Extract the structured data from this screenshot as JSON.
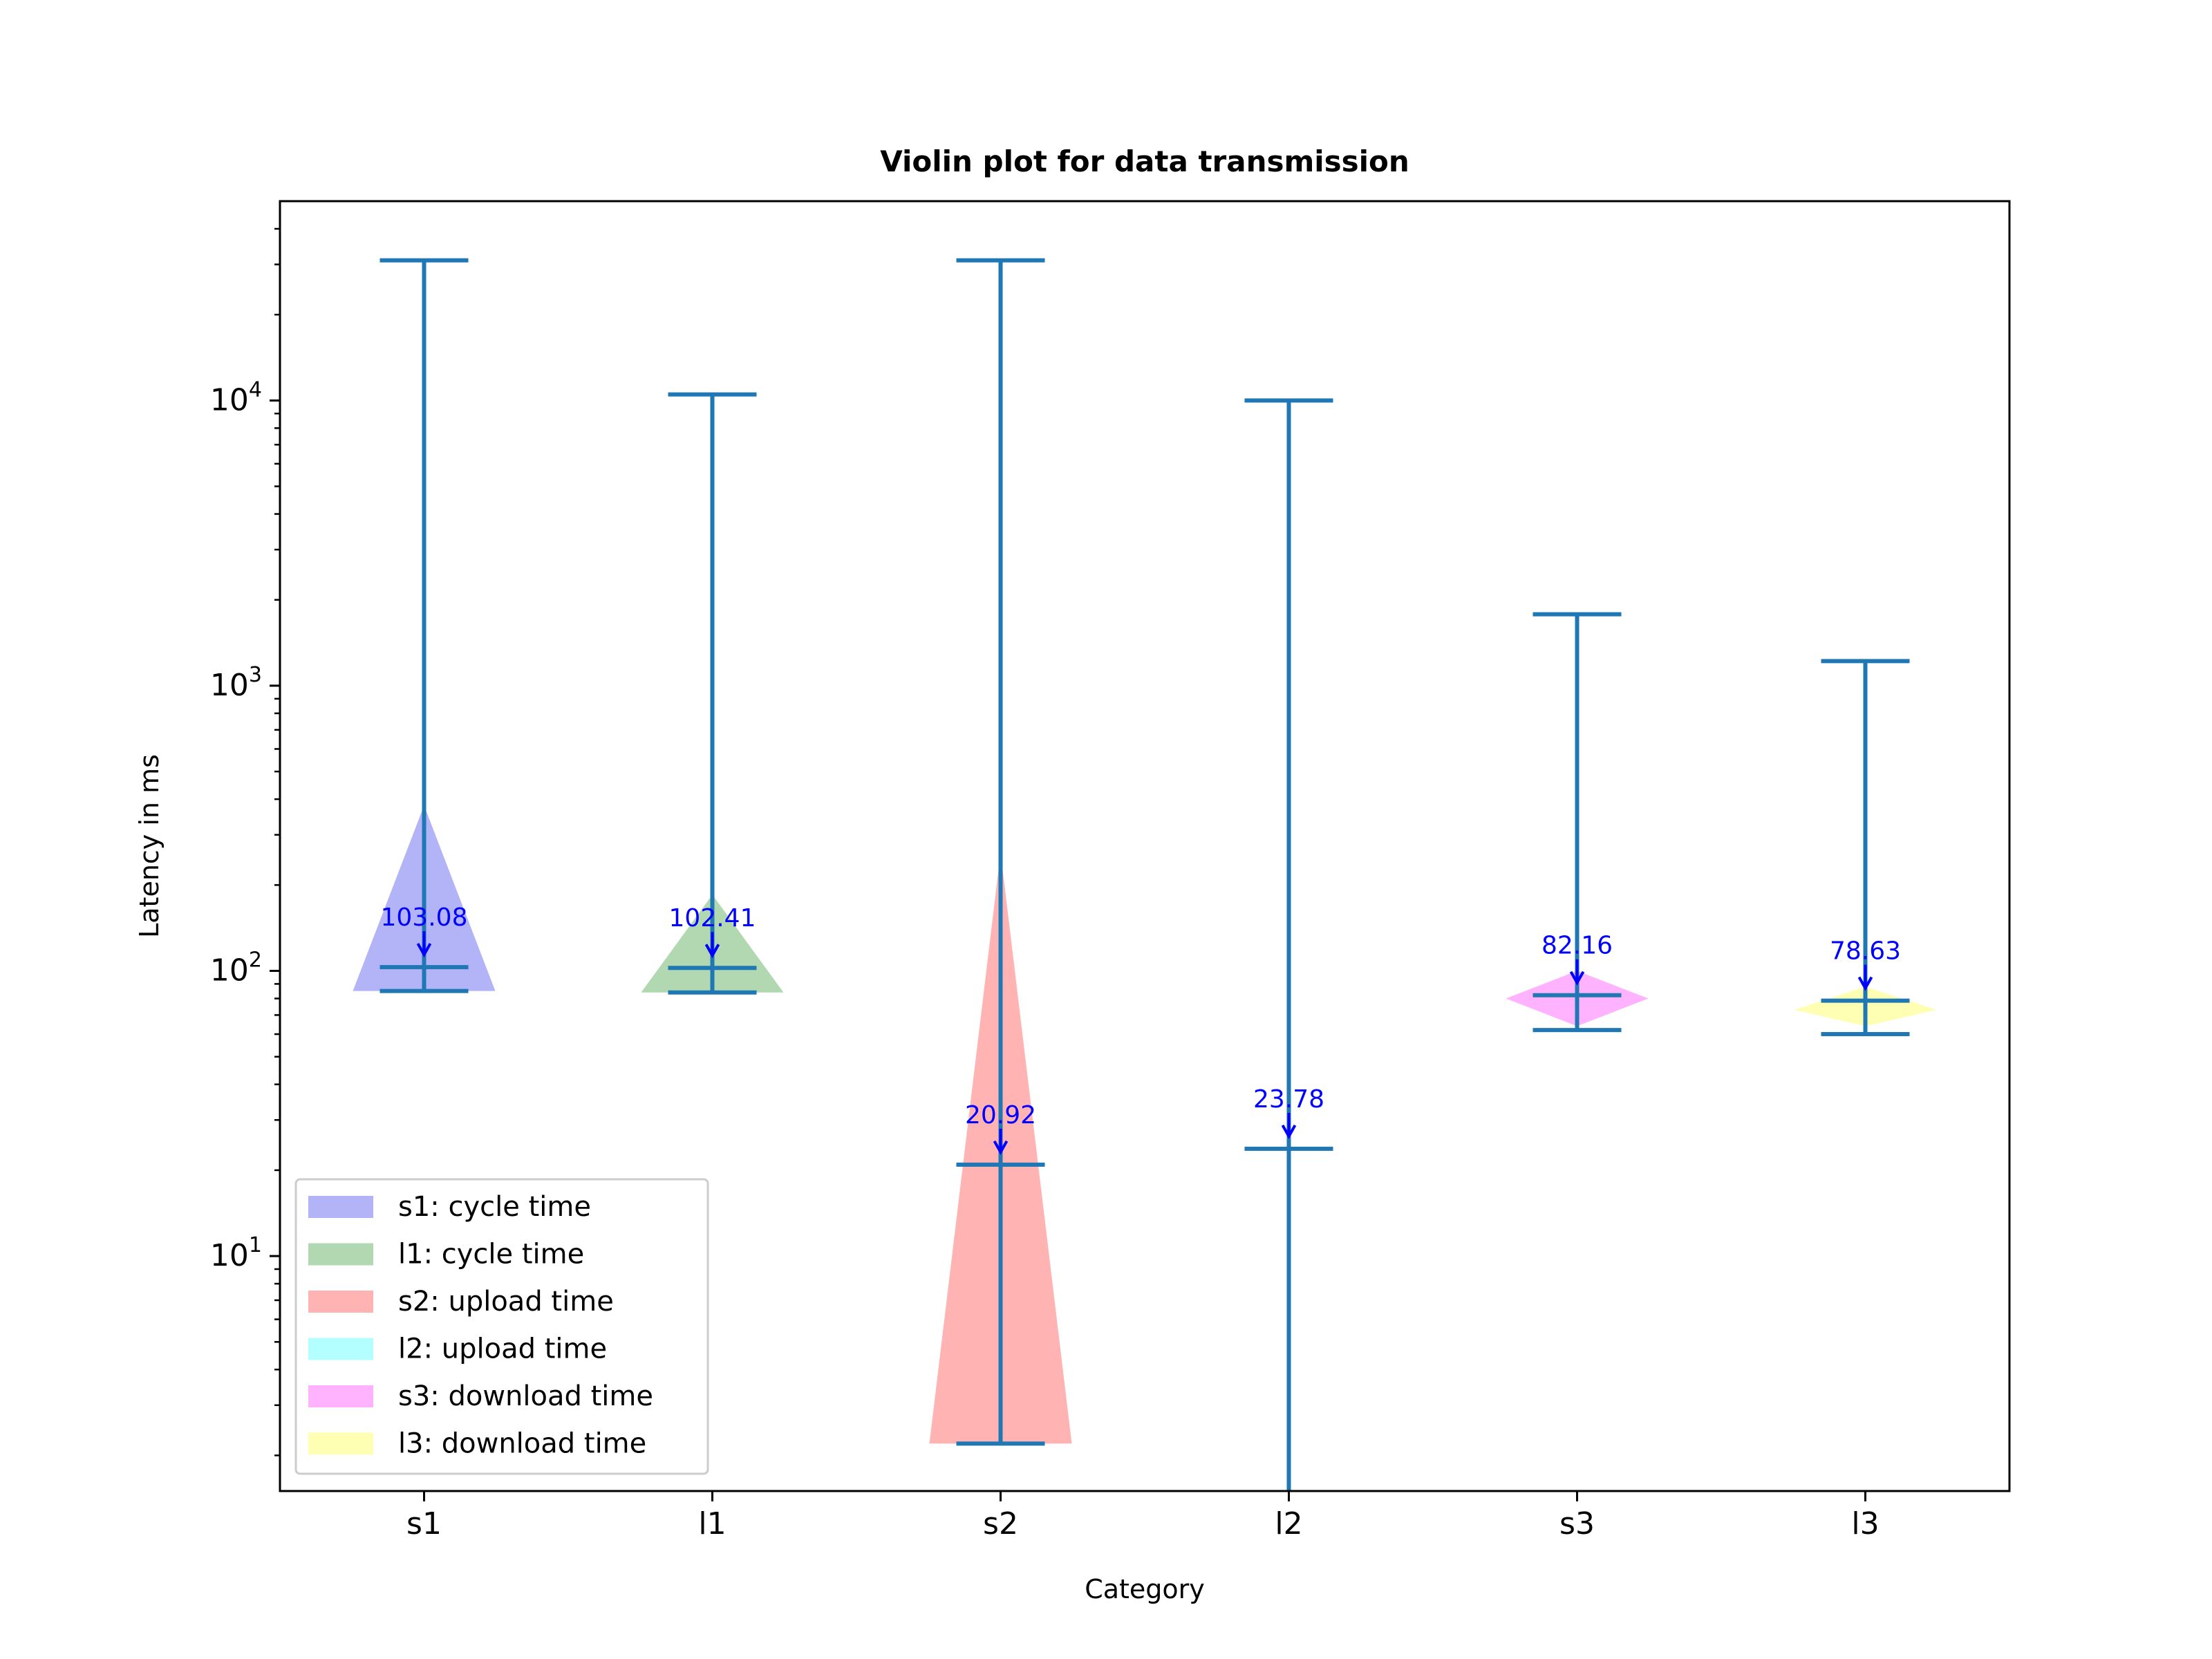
{
  "chart_data": {
    "type": "violin",
    "title": "Violin plot for data transmission",
    "xlabel": "Category",
    "ylabel": "Latency in ms",
    "yscale": "log",
    "ylim": [
      1.5,
      50000
    ],
    "yticks": [
      {
        "value": 10,
        "base": "10",
        "exp": "1"
      },
      {
        "value": 100,
        "base": "10",
        "exp": "2"
      },
      {
        "value": 1000,
        "base": "10",
        "exp": "3"
      },
      {
        "value": 10000,
        "base": "10",
        "exp": "4"
      }
    ],
    "categories": [
      "s1",
      "l1",
      "s2",
      "l2",
      "s3",
      "l3"
    ],
    "series": [
      {
        "category": "s1",
        "legend": "s1: cycle time",
        "color": "#b3b3f7",
        "min": 85,
        "max": 31000,
        "mean": 103.08,
        "mean_label": "103.08",
        "violin_top": 380,
        "violin_bottom": 85,
        "violin_peak": 85,
        "shape": "triangle-up"
      },
      {
        "category": "l1",
        "legend": "l1: cycle time",
        "color": "#b2d8b2",
        "min": 84,
        "max": 10500,
        "mean": 102.41,
        "mean_label": "102.41",
        "violin_top": 185,
        "violin_bottom": 84,
        "violin_peak": 84,
        "shape": "triangle-up"
      },
      {
        "category": "s2",
        "legend": "s2: upload time",
        "color": "#ffb3b3",
        "min": 2.2,
        "max": 31000,
        "mean": 20.92,
        "mean_label": "20.92",
        "violin_top": 260,
        "violin_bottom": 2.2,
        "violin_peak": 2.2,
        "shape": "triangle-up"
      },
      {
        "category": "l2",
        "legend": "l2: upload time",
        "color": "#b3ffff",
        "min": 1.5,
        "max": 10000,
        "mean": 23.78,
        "mean_label": "23.78",
        "violin_top": null,
        "violin_bottom": null,
        "violin_peak": null,
        "shape": "none"
      },
      {
        "category": "s3",
        "legend": "s3: download time",
        "color": "#ffb3ff",
        "min": 62,
        "max": 1780,
        "mean": 82.16,
        "mean_label": "82.16",
        "violin_top": 100,
        "violin_bottom": 64,
        "violin_peak": 80,
        "shape": "diamond"
      },
      {
        "category": "l3",
        "legend": "l3: download time",
        "color": "#ffffb3",
        "min": 60,
        "max": 1220,
        "mean": 78.63,
        "mean_label": "78.63",
        "violin_top": 88,
        "violin_bottom": 64,
        "violin_peak": 73,
        "shape": "diamond"
      }
    ],
    "line_color": "#1f77b4",
    "annotation_color": "#0000ff",
    "legend_position": "lower-left",
    "grid": false
  }
}
